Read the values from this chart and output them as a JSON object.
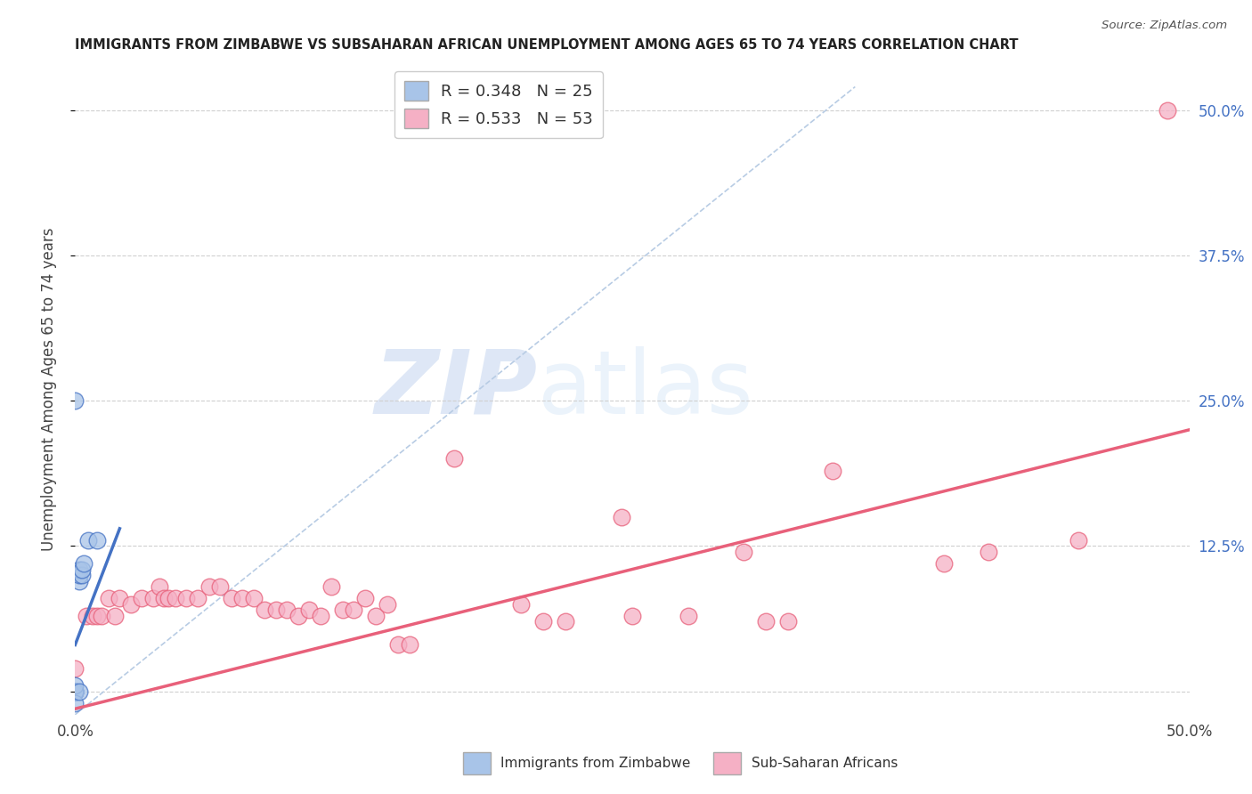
{
  "title": "IMMIGRANTS FROM ZIMBABWE VS SUBSAHARAN AFRICAN UNEMPLOYMENT AMONG AGES 65 TO 74 YEARS CORRELATION CHART",
  "source": "Source: ZipAtlas.com",
  "ylabel": "Unemployment Among Ages 65 to 74 years",
  "xlim": [
    0.0,
    0.5
  ],
  "ylim": [
    -0.02,
    0.54
  ],
  "watermark_zip": "ZIP",
  "watermark_atlas": "atlas",
  "blue_R": 0.348,
  "blue_N": 25,
  "pink_R": 0.533,
  "pink_N": 53,
  "blue_color": "#a8c4e8",
  "pink_color": "#f5b0c5",
  "blue_line_color": "#4472c4",
  "pink_line_color": "#e8607a",
  "diag_color": "#b8cce4",
  "grid_color": "#d0d0d0",
  "blue_scatter": [
    [
      0.0,
      0.0
    ],
    [
      0.0,
      0.0
    ],
    [
      0.0,
      0.0
    ],
    [
      0.0,
      0.0
    ],
    [
      0.0,
      0.0
    ],
    [
      0.0,
      0.0
    ],
    [
      0.0,
      0.0
    ],
    [
      0.0,
      0.0
    ],
    [
      0.0,
      0.0
    ],
    [
      0.0,
      0.0
    ],
    [
      0.0,
      0.0
    ],
    [
      0.0,
      0.0
    ],
    [
      0.0,
      0.0
    ],
    [
      0.0,
      0.005
    ],
    [
      0.0,
      -0.01
    ],
    [
      0.002,
      0.095
    ],
    [
      0.002,
      0.1
    ],
    [
      0.002,
      0.105
    ],
    [
      0.003,
      0.1
    ],
    [
      0.003,
      0.105
    ],
    [
      0.004,
      0.11
    ],
    [
      0.006,
      0.13
    ],
    [
      0.01,
      0.13
    ],
    [
      0.0,
      0.25
    ],
    [
      0.002,
      0.0
    ]
  ],
  "pink_scatter": [
    [
      0.0,
      0.0
    ],
    [
      0.0,
      0.02
    ],
    [
      0.0,
      0.0
    ],
    [
      0.005,
      0.065
    ],
    [
      0.008,
      0.065
    ],
    [
      0.01,
      0.065
    ],
    [
      0.012,
      0.065
    ],
    [
      0.015,
      0.08
    ],
    [
      0.018,
      0.065
    ],
    [
      0.02,
      0.08
    ],
    [
      0.025,
      0.075
    ],
    [
      0.03,
      0.08
    ],
    [
      0.035,
      0.08
    ],
    [
      0.038,
      0.09
    ],
    [
      0.04,
      0.08
    ],
    [
      0.042,
      0.08
    ],
    [
      0.045,
      0.08
    ],
    [
      0.05,
      0.08
    ],
    [
      0.055,
      0.08
    ],
    [
      0.06,
      0.09
    ],
    [
      0.065,
      0.09
    ],
    [
      0.07,
      0.08
    ],
    [
      0.075,
      0.08
    ],
    [
      0.08,
      0.08
    ],
    [
      0.085,
      0.07
    ],
    [
      0.09,
      0.07
    ],
    [
      0.095,
      0.07
    ],
    [
      0.1,
      0.065
    ],
    [
      0.105,
      0.07
    ],
    [
      0.11,
      0.065
    ],
    [
      0.115,
      0.09
    ],
    [
      0.12,
      0.07
    ],
    [
      0.125,
      0.07
    ],
    [
      0.13,
      0.08
    ],
    [
      0.135,
      0.065
    ],
    [
      0.14,
      0.075
    ],
    [
      0.145,
      0.04
    ],
    [
      0.15,
      0.04
    ],
    [
      0.17,
      0.2
    ],
    [
      0.2,
      0.075
    ],
    [
      0.21,
      0.06
    ],
    [
      0.22,
      0.06
    ],
    [
      0.245,
      0.15
    ],
    [
      0.25,
      0.065
    ],
    [
      0.275,
      0.065
    ],
    [
      0.3,
      0.12
    ],
    [
      0.31,
      0.06
    ],
    [
      0.32,
      0.06
    ],
    [
      0.34,
      0.19
    ],
    [
      0.39,
      0.11
    ],
    [
      0.41,
      0.12
    ],
    [
      0.45,
      0.13
    ],
    [
      0.49,
      0.5
    ]
  ]
}
